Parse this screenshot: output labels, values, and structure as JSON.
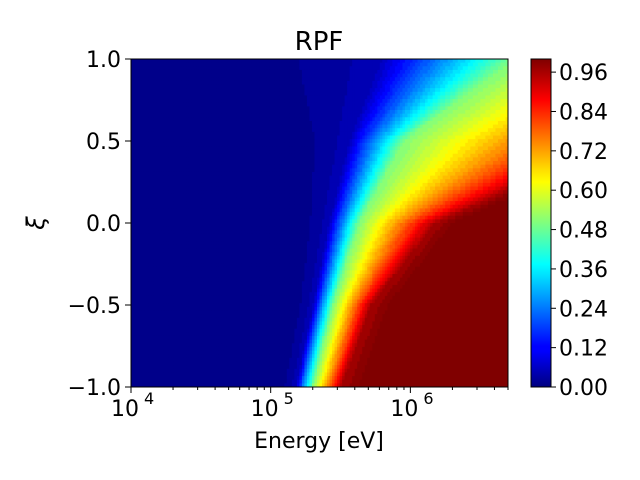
{
  "chart_data": {
    "type": "heatmap",
    "title": "RPF",
    "xlabel": "Energy [eV]",
    "ylabel": "ξ",
    "x_scale": "log",
    "xlim": [
      10000,
      5000000
    ],
    "ylim": [
      -1.0,
      1.0
    ],
    "x_ticks": [
      {
        "value": 10000,
        "base": "10",
        "exp": "4"
      },
      {
        "value": 100000,
        "base": "10",
        "exp": "5"
      },
      {
        "value": 1000000,
        "base": "10",
        "exp": "6"
      }
    ],
    "y_ticks": [
      {
        "value": 1.0,
        "label": "1.0"
      },
      {
        "value": 0.5,
        "label": "0.5"
      },
      {
        "value": 0.0,
        "label": "0.0"
      },
      {
        "value": -0.5,
        "label": "−0.5"
      },
      {
        "value": -1.0,
        "label": "−1.0"
      }
    ],
    "colorbar": {
      "colormap": "jet",
      "range": [
        0.0,
        1.0
      ],
      "ticks": [
        "0.00",
        "0.12",
        "0.24",
        "0.36",
        "0.48",
        "0.60",
        "0.72",
        "0.84",
        "0.96"
      ],
      "tick_values": [
        0.0,
        0.12,
        0.24,
        0.36,
        0.48,
        0.6,
        0.72,
        0.84,
        0.96
      ]
    },
    "contour_boundaries": [
      {
        "level": 0.05,
        "points": [
          [
            150000,
            -1.0
          ],
          [
            200000,
            -0.5
          ],
          [
            260000,
            0.0
          ],
          [
            360000,
            0.5
          ],
          [
            600000,
            1.0
          ]
        ]
      },
      {
        "level": 0.5,
        "points": [
          [
            200000,
            -1.0
          ],
          [
            280000,
            -0.5
          ],
          [
            430000,
            0.0
          ],
          [
            900000,
            0.5
          ],
          [
            5000000,
            0.97
          ]
        ]
      },
      {
        "level": 0.96,
        "points": [
          [
            320000,
            -1.0
          ],
          [
            520000,
            -0.5
          ],
          [
            1500000,
            0.0
          ],
          [
            5000000,
            0.2
          ]
        ]
      }
    ]
  }
}
